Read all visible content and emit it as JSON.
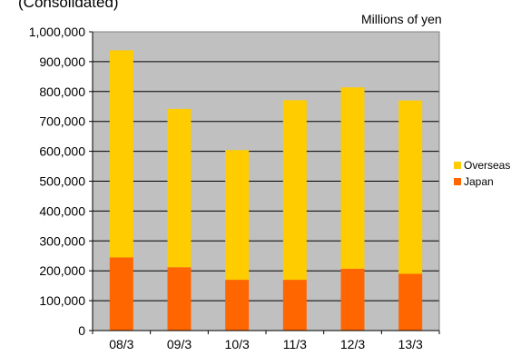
{
  "header": {
    "subtitle": "(Consolidated)",
    "unit_label": "Millions of yen"
  },
  "chart_data": {
    "type": "bar",
    "stacked": true,
    "categories": [
      "08/3",
      "09/3",
      "10/3",
      "11/3",
      "12/3",
      "13/3"
    ],
    "series": [
      {
        "name": "Japan",
        "color": "#ff6600",
        "values": [
          245000,
          212000,
          170000,
          170000,
          207000,
          190000
        ]
      },
      {
        "name": "Overseas",
        "color": "#ffcc00",
        "values": [
          693000,
          530000,
          434000,
          601000,
          607000,
          580000
        ]
      }
    ],
    "ylim": [
      0,
      1000000
    ],
    "yticks": [
      "0",
      "100,000",
      "200,000",
      "300,000",
      "400,000",
      "500,000",
      "600,000",
      "700,000",
      "800,000",
      "900,000",
      "1,000,000"
    ],
    "grid": true,
    "legend_position": "right",
    "plot_background": "#c0c0c0"
  },
  "legend": {
    "items": [
      {
        "label": "Overseas",
        "color": "#ffcc00"
      },
      {
        "label": "Japan",
        "color": "#ff6600"
      }
    ]
  }
}
